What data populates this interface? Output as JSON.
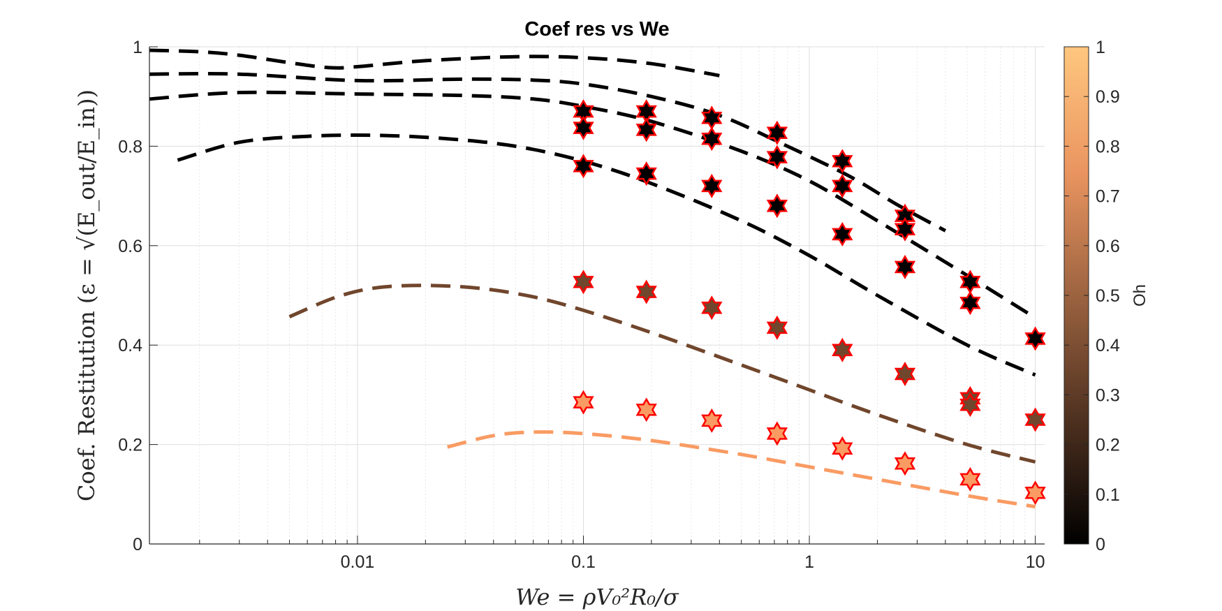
{
  "chart_data": {
    "type": "scatter",
    "title": "Coef res vs We",
    "xlabel": "We = ρV₀²R₀/σ",
    "ylabel": "Coef. Restitution (ε = √(E_out/E_in))",
    "xscale": "log",
    "xlim": [
      0.0012,
      11
    ],
    "ylim": [
      0,
      1
    ],
    "xticks": [
      0.01,
      0.1,
      1,
      10
    ],
    "xtick_labels": [
      "0.01",
      "0.1",
      "1",
      "10"
    ],
    "yticks": [
      0,
      0.2,
      0.4,
      0.6,
      0.8,
      1
    ],
    "ytick_labels": [
      "0",
      "0.2",
      "0.4",
      "0.6",
      "0.8",
      "1"
    ],
    "grid": true,
    "colorbar": {
      "label": "Oh",
      "range": [
        0,
        1
      ],
      "ticks": [
        0,
        0.1,
        0.2,
        0.3,
        0.4,
        0.5,
        0.6,
        0.7,
        0.8,
        0.9,
        1
      ],
      "tick_labels": [
        "0",
        "0.1",
        "0.2",
        "0.3",
        "0.4",
        "0.5",
        "0.6",
        "0.7",
        "0.8",
        "0.9",
        "1"
      ],
      "colormap": "copper"
    },
    "curves": [
      {
        "oh": 0.0,
        "x": [
          0.0012,
          0.002,
          0.003,
          0.005,
          0.0075,
          0.01,
          0.02,
          0.05,
          0.1,
          0.2,
          0.4
        ],
        "y": [
          0.993,
          0.99,
          0.983,
          0.968,
          0.958,
          0.96,
          0.972,
          0.98,
          0.978,
          0.966,
          0.942
        ]
      },
      {
        "oh": 0.0,
        "x": [
          0.0012,
          0.003,
          0.01,
          0.03,
          0.06,
          0.1,
          0.2,
          0.4,
          0.8,
          1.5,
          2.5,
          4
        ],
        "y": [
          0.945,
          0.945,
          0.932,
          0.935,
          0.933,
          0.925,
          0.9,
          0.862,
          0.8,
          0.74,
          0.68,
          0.63
        ]
      },
      {
        "oh": 0.0,
        "x": [
          0.0012,
          0.003,
          0.01,
          0.03,
          0.06,
          0.1,
          0.2,
          0.5,
          1,
          2,
          5,
          10
        ],
        "y": [
          0.895,
          0.908,
          0.905,
          0.902,
          0.895,
          0.88,
          0.85,
          0.79,
          0.73,
          0.65,
          0.54,
          0.455
        ]
      },
      {
        "oh": 0.0,
        "x": [
          0.0016,
          0.003,
          0.006,
          0.012,
          0.025,
          0.05,
          0.1,
          0.2,
          0.5,
          1,
          2,
          5,
          10
        ],
        "y": [
          0.772,
          0.808,
          0.82,
          0.822,
          0.815,
          0.8,
          0.77,
          0.725,
          0.65,
          0.58,
          0.5,
          0.4,
          0.34
        ]
      },
      {
        "oh": 0.35,
        "x": [
          0.005,
          0.008,
          0.012,
          0.02,
          0.035,
          0.06,
          0.1,
          0.2,
          0.5,
          1,
          2,
          5,
          10
        ],
        "y": [
          0.457,
          0.496,
          0.515,
          0.52,
          0.514,
          0.497,
          0.47,
          0.425,
          0.36,
          0.31,
          0.26,
          0.2,
          0.165
        ]
      },
      {
        "oh": 0.78,
        "x": [
          0.025,
          0.04,
          0.06,
          0.1,
          0.2,
          0.5,
          1,
          2,
          5,
          10
        ],
        "y": [
          0.195,
          0.218,
          0.225,
          0.222,
          0.208,
          0.18,
          0.155,
          0.13,
          0.097,
          0.075
        ]
      }
    ],
    "points": [
      {
        "x": 0.1,
        "y": 0.87,
        "oh": 0.0
      },
      {
        "x": 0.1,
        "y": 0.837,
        "oh": 0.0
      },
      {
        "x": 0.1,
        "y": 0.76,
        "oh": 0.0
      },
      {
        "x": 0.1,
        "y": 0.527,
        "oh": 0.35
      },
      {
        "x": 0.1,
        "y": 0.285,
        "oh": 0.78
      },
      {
        "x": 0.19,
        "y": 0.87,
        "oh": 0.0
      },
      {
        "x": 0.19,
        "y": 0.833,
        "oh": 0.0
      },
      {
        "x": 0.19,
        "y": 0.745,
        "oh": 0.0
      },
      {
        "x": 0.19,
        "y": 0.507,
        "oh": 0.35
      },
      {
        "x": 0.19,
        "y": 0.27,
        "oh": 0.78
      },
      {
        "x": 0.37,
        "y": 0.857,
        "oh": 0.0
      },
      {
        "x": 0.37,
        "y": 0.815,
        "oh": 0.0
      },
      {
        "x": 0.37,
        "y": 0.72,
        "oh": 0.0
      },
      {
        "x": 0.37,
        "y": 0.475,
        "oh": 0.35
      },
      {
        "x": 0.37,
        "y": 0.248,
        "oh": 0.78
      },
      {
        "x": 0.72,
        "y": 0.827,
        "oh": 0.0
      },
      {
        "x": 0.72,
        "y": 0.778,
        "oh": 0.0
      },
      {
        "x": 0.72,
        "y": 0.68,
        "oh": 0.0
      },
      {
        "x": 0.72,
        "y": 0.435,
        "oh": 0.35
      },
      {
        "x": 0.72,
        "y": 0.222,
        "oh": 0.78
      },
      {
        "x": 1.4,
        "y": 0.77,
        "oh": 0.0
      },
      {
        "x": 1.4,
        "y": 0.72,
        "oh": 0.0
      },
      {
        "x": 1.4,
        "y": 0.623,
        "oh": 0.0
      },
      {
        "x": 1.4,
        "y": 0.39,
        "oh": 0.35
      },
      {
        "x": 1.4,
        "y": 0.192,
        "oh": 0.78
      },
      {
        "x": 2.65,
        "y": 0.66,
        "oh": 0.0
      },
      {
        "x": 2.65,
        "y": 0.633,
        "oh": 0.0
      },
      {
        "x": 2.65,
        "y": 0.557,
        "oh": 0.0
      },
      {
        "x": 2.65,
        "y": 0.342,
        "oh": 0.35
      },
      {
        "x": 2.65,
        "y": 0.162,
        "oh": 0.78
      },
      {
        "x": 5.15,
        "y": 0.527,
        "oh": 0.0
      },
      {
        "x": 5.15,
        "y": 0.485,
        "oh": 0.0
      },
      {
        "x": 5.15,
        "y": 0.293,
        "oh": 0.35
      },
      {
        "x": 5.15,
        "y": 0.28,
        "oh": 0.35
      },
      {
        "x": 5.15,
        "y": 0.13,
        "oh": 0.78
      },
      {
        "x": 10,
        "y": 0.413,
        "oh": 0.0
      },
      {
        "x": 10,
        "y": 0.25,
        "oh": 0.35
      },
      {
        "x": 10,
        "y": 0.103,
        "oh": 0.78
      }
    ],
    "marker_edge_color": "#ff0000"
  }
}
